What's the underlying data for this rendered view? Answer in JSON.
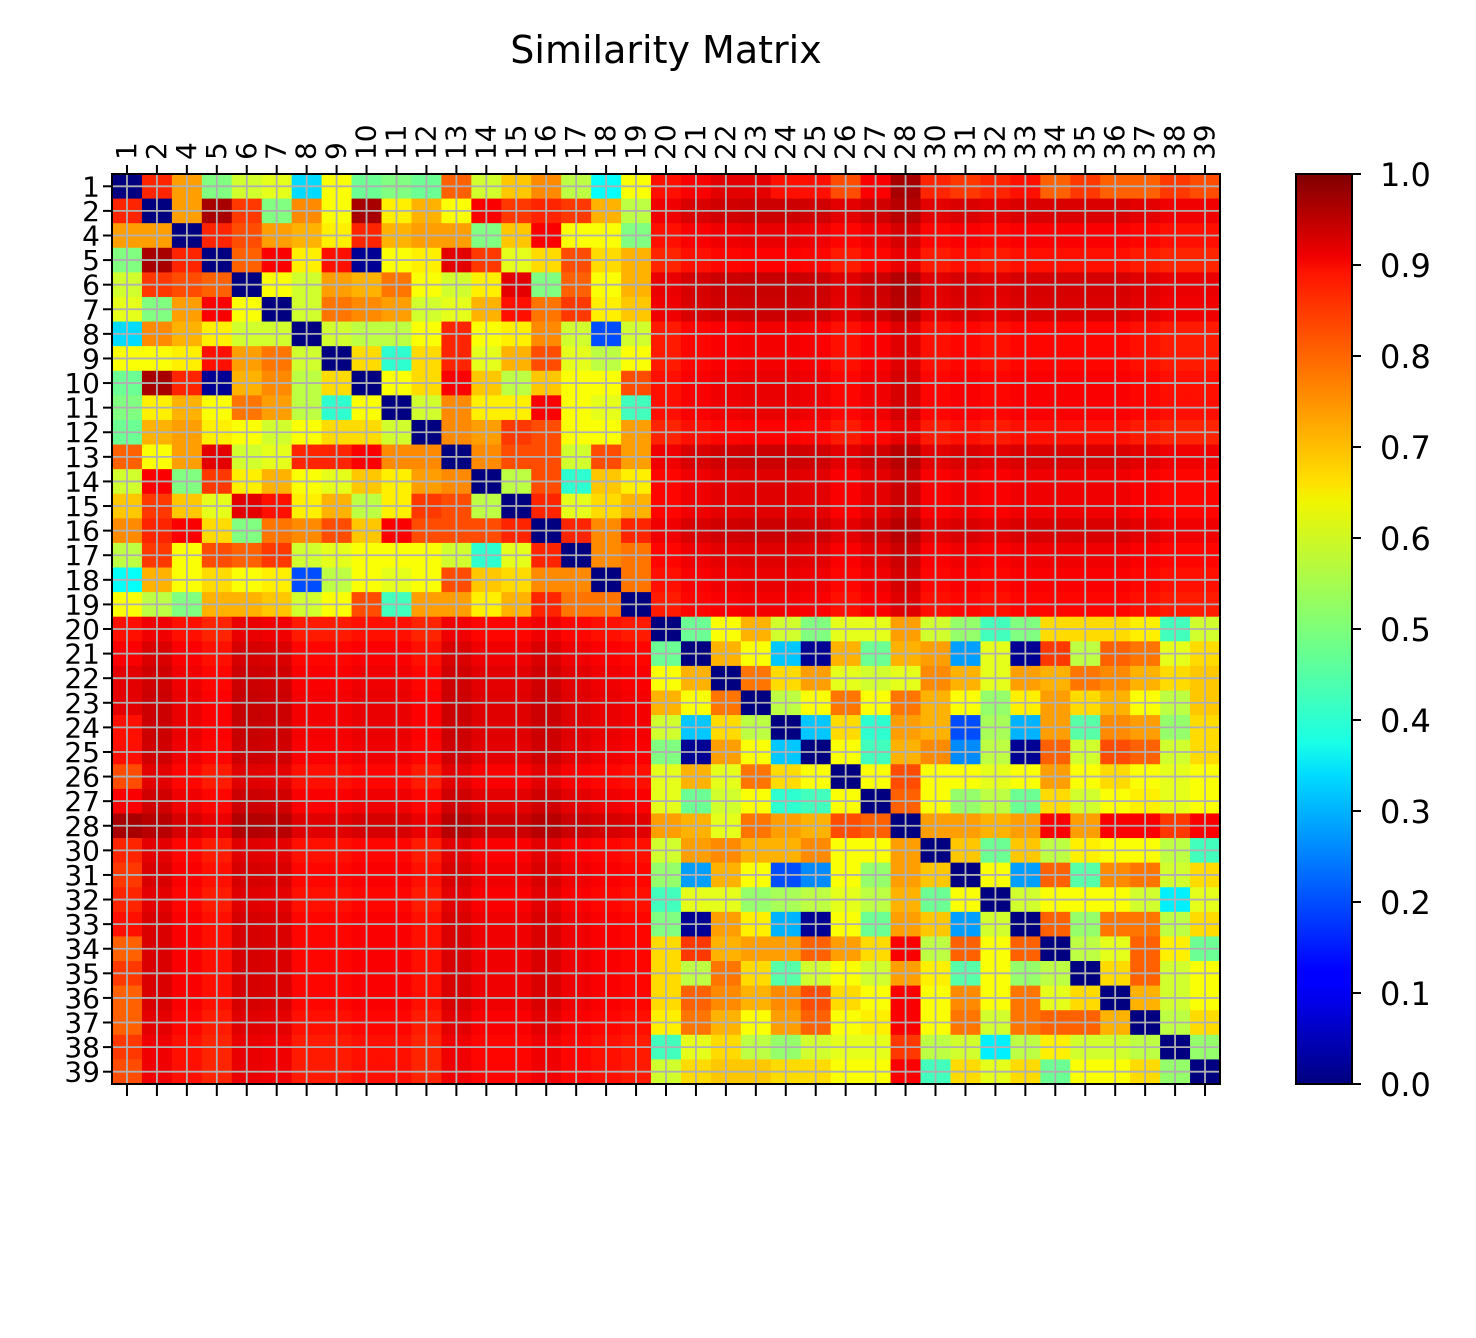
{
  "chart_data": {
    "type": "heatmap",
    "title": "Similarity Matrix",
    "labels": [
      "1",
      "2",
      "4",
      "5",
      "6",
      "7",
      "8",
      "9",
      "10",
      "11",
      "12",
      "13",
      "14",
      "15",
      "16",
      "17",
      "18",
      "19",
      "20",
      "21",
      "22",
      "23",
      "24",
      "25",
      "26",
      "27",
      "28",
      "30",
      "31",
      "32",
      "33",
      "34",
      "35",
      "36",
      "37",
      "38",
      "39"
    ],
    "colormap": "jet",
    "vmin": 0.0,
    "vmax": 1.0,
    "colorbar_ticks": [
      "0.0",
      "0.1",
      "0.2",
      "0.3",
      "0.4",
      "0.5",
      "0.6",
      "0.7",
      "0.8",
      "0.9",
      "1.0"
    ],
    "grid": true,
    "grid_color": "#b0b0b0",
    "x_ticks_position": "top",
    "notes_on_structure": "",
    "pairs": {
      "1-2": 0.84,
      "1-4": 0.72,
      "1-5": 0.5,
      "1-6": 0.58,
      "1-7": 0.6,
      "1-8": 0.34,
      "1-9": 0.62,
      "1-10": 0.48,
      "1-11": 0.5,
      "1-12": 0.48,
      "1-13": 0.78,
      "1-14": 0.58,
      "1-15": 0.68,
      "1-16": 0.74,
      "1-17": 0.56,
      "1-18": 0.38,
      "1-19": 0.62,
      "1-20": 0.86,
      "1-21": 0.88,
      "1-22": 0.9,
      "1-23": 0.9,
      "1-24": 0.86,
      "1-25": 0.86,
      "1-26": 0.8,
      "1-27": 0.88,
      "1-28": 0.96,
      "1-30": 0.84,
      "1-31": 0.82,
      "1-32": 0.84,
      "1-33": 0.86,
      "1-34": 0.78,
      "1-35": 0.82,
      "1-36": 0.78,
      "1-37": 0.78,
      "1-38": 0.82,
      "1-39": 0.8,
      "2-4": 0.72,
      "2-5": 0.96,
      "2-6": 0.82,
      "2-7": 0.5,
      "2-8": 0.74,
      "2-9": 0.62,
      "2-10": 0.96,
      "2-11": 0.64,
      "2-12": 0.7,
      "2-13": 0.62,
      "2-14": 0.88,
      "2-15": 0.82,
      "2-16": 0.84,
      "2-17": 0.82,
      "2-18": 0.7,
      "2-19": 0.56,
      "4-5": 0.84,
      "4-6": 0.8,
      "4-7": 0.72,
      "4-8": 0.7,
      "4-9": 0.64,
      "4-10": 0.84,
      "4-11": 0.7,
      "4-12": 0.72,
      "4-13": 0.72,
      "4-14": 0.5,
      "4-15": 0.68,
      "4-16": 0.88,
      "4-17": 0.62,
      "4-18": 0.62,
      "4-19": 0.5,
      "5-6": 0.78,
      "5-7": 0.88,
      "5-8": 0.64,
      "5-9": 0.86,
      "5-10": 0.02,
      "5-11": 0.62,
      "5-12": 0.64,
      "5-13": 0.9,
      "5-14": 0.82,
      "5-15": 0.6,
      "5-16": 0.66,
      "5-17": 0.8,
      "5-18": 0.66,
      "5-19": 0.7,
      "6-7": 0.62,
      "6-8": 0.58,
      "6-9": 0.72,
      "6-10": 0.7,
      "6-11": 0.76,
      "6-12": 0.62,
      "6-13": 0.58,
      "6-14": 0.64,
      "6-15": 0.9,
      "6-16": 0.5,
      "6-17": 0.78,
      "6-18": 0.62,
      "6-19": 0.7,
      "7-8": 0.58,
      "7-9": 0.76,
      "7-10": 0.74,
      "7-11": 0.72,
      "7-12": 0.58,
      "7-13": 0.6,
      "7-14": 0.7,
      "7-15": 0.86,
      "7-16": 0.76,
      "7-17": 0.82,
      "7-18": 0.64,
      "7-19": 0.68,
      "8-9": 0.58,
      "8-10": 0.56,
      "8-11": 0.56,
      "8-12": 0.62,
      "8-13": 0.84,
      "8-14": 0.62,
      "8-15": 0.64,
      "8-16": 0.74,
      "8-17": 0.58,
      "8-18": 0.2,
      "8-19": 0.58,
      "9-10": 0.66,
      "9-11": 0.42,
      "9-12": 0.66,
      "9-13": 0.84,
      "9-14": 0.6,
      "9-15": 0.7,
      "9-16": 0.8,
      "9-17": 0.6,
      "9-18": 0.56,
      "9-19": 0.62,
      "10-11": 0.62,
      "10-12": 0.66,
      "10-13": 0.88,
      "10-14": 0.68,
      "10-15": 0.56,
      "10-16": 0.68,
      "10-17": 0.62,
      "10-18": 0.62,
      "10-19": 0.8,
      "11-12": 0.58,
      "11-13": 0.74,
      "11-14": 0.64,
      "11-15": 0.64,
      "11-16": 0.88,
      "11-17": 0.62,
      "11-18": 0.6,
      "11-19": 0.44,
      "12-13": 0.74,
      "12-14": 0.72,
      "12-15": 0.82,
      "12-16": 0.8,
      "12-17": 0.62,
      "12-18": 0.62,
      "12-19": 0.72,
      "13-14": 0.74,
      "13-15": 0.8,
      "13-16": 0.8,
      "13-17": 0.58,
      "13-18": 0.8,
      "13-19": 0.72,
      "14-15": 0.56,
      "14-16": 0.8,
      "14-17": 0.42,
      "14-18": 0.68,
      "14-19": 0.64,
      "15-16": 0.84,
      "15-17": 0.6,
      "15-18": 0.66,
      "15-19": 0.7,
      "16-17": 0.84,
      "16-18": 0.74,
      "16-19": 0.84,
      "17-18": 0.74,
      "17-19": 0.76,
      "18-19": 0.76,
      "20-21": 0.48,
      "20-22": 0.62,
      "20-23": 0.7,
      "20-24": 0.58,
      "20-25": 0.5,
      "20-26": 0.6,
      "20-27": 0.6,
      "20-28": 0.72,
      "20-30": 0.58,
      "20-31": 0.52,
      "20-32": 0.44,
      "20-33": 0.5,
      "20-34": 0.66,
      "20-35": 0.66,
      "20-36": 0.66,
      "20-37": 0.64,
      "20-38": 0.44,
      "20-39": 0.58,
      "21-22": 0.7,
      "21-23": 0.62,
      "21-24": 0.32,
      "21-25": 0.02,
      "21-26": 0.7,
      "21-27": 0.48,
      "21-28": 0.7,
      "21-30": 0.72,
      "21-31": 0.28,
      "21-32": 0.6,
      "21-33": 0.02,
      "21-34": 0.82,
      "21-35": 0.56,
      "21-36": 0.78,
      "21-37": 0.76,
      "21-38": 0.6,
      "21-39": 0.66,
      "22-23": 0.76,
      "22-24": 0.66,
      "22-25": 0.72,
      "22-26": 0.6,
      "22-27": 0.58,
      "22-28": 0.6,
      "22-30": 0.74,
      "22-31": 0.7,
      "22-32": 0.6,
      "22-33": 0.72,
      "22-34": 0.7,
      "22-35": 0.76,
      "22-36": 0.74,
      "22-37": 0.7,
      "22-38": 0.66,
      "22-39": 0.68,
      "23-24": 0.56,
      "23-25": 0.62,
      "23-26": 0.76,
      "23-27": 0.62,
      "23-28": 0.76,
      "23-30": 0.7,
      "23-31": 0.62,
      "23-32": 0.52,
      "23-33": 0.64,
      "23-34": 0.72,
      "23-35": 0.66,
      "23-36": 0.7,
      "23-37": 0.62,
      "23-38": 0.56,
      "23-39": 0.68,
      "24-25": 0.32,
      "24-26": 0.66,
      "24-27": 0.42,
      "24-28": 0.72,
      "24-30": 0.7,
      "24-31": 0.2,
      "24-32": 0.54,
      "24-33": 0.3,
      "24-34": 0.72,
      "24-35": 0.46,
      "24-36": 0.74,
      "24-37": 0.72,
      "24-38": 0.52,
      "24-39": 0.66,
      "25-26": 0.62,
      "25-27": 0.44,
      "25-28": 0.7,
      "25-30": 0.74,
      "25-31": 0.26,
      "25-32": 0.56,
      "25-33": 0.02,
      "25-34": 0.78,
      "25-35": 0.58,
      "25-36": 0.8,
      "25-37": 0.78,
      "25-38": 0.58,
      "25-39": 0.66,
      "26-27": 0.62,
      "26-28": 0.8,
      "26-30": 0.62,
      "26-31": 0.62,
      "26-32": 0.6,
      "26-33": 0.62,
      "26-34": 0.72,
      "26-35": 0.62,
      "26-36": 0.66,
      "26-37": 0.62,
      "26-38": 0.6,
      "26-39": 0.62,
      "27-28": 0.78,
      "27-30": 0.62,
      "27-31": 0.52,
      "27-32": 0.56,
      "27-33": 0.48,
      "27-34": 0.66,
      "27-35": 0.58,
      "27-36": 0.62,
      "27-37": 0.64,
      "27-38": 0.6,
      "27-39": 0.62,
      "28-30": 0.72,
      "28-31": 0.72,
      "28-32": 0.7,
      "28-33": 0.72,
      "28-34": 0.88,
      "28-35": 0.72,
      "28-36": 0.88,
      "28-37": 0.88,
      "28-38": 0.82,
      "28-39": 0.88,
      "30-31": 0.68,
      "30-32": 0.48,
      "30-33": 0.68,
      "30-34": 0.56,
      "30-35": 0.64,
      "30-36": 0.62,
      "30-37": 0.62,
      "30-38": 0.56,
      "30-39": 0.44,
      "31-32": 0.62,
      "31-33": 0.28,
      "31-34": 0.78,
      "31-35": 0.46,
      "31-36": 0.74,
      "31-37": 0.76,
      "31-38": 0.58,
      "31-39": 0.66,
      "32-33": 0.58,
      "32-34": 0.62,
      "32-35": 0.62,
      "32-36": 0.62,
      "32-37": 0.58,
      "32-38": 0.36,
      "32-39": 0.6,
      "33-34": 0.78,
      "33-35": 0.52,
      "33-36": 0.76,
      "33-37": 0.76,
      "33-38": 0.56,
      "33-39": 0.66,
      "34-35": 0.56,
      "34-36": 0.6,
      "34-37": 0.78,
      "34-38": 0.64,
      "34-39": 0.48,
      "35-36": 0.66,
      "35-37": 0.78,
      "35-38": 0.58,
      "35-39": 0.62,
      "36-37": 0.7,
      "36-38": 0.58,
      "36-39": 0.62,
      "37-38": 0.56,
      "37-39": 0.66,
      "38-39": 0.52
    },
    "cross_block": {
      "row_means": {
        "1": 0.86,
        "2": 0.92,
        "4": 0.86,
        "5": 0.82,
        "6": 0.93,
        "7": 0.92,
        "8": 0.84,
        "9": 0.84,
        "10": 0.86,
        "11": 0.86,
        "12": 0.82,
        "13": 0.92,
        "14": 0.88,
        "15": 0.88,
        "16": 0.92,
        "17": 0.88,
        "18": 0.86,
        "19": 0.84
      },
      "col_means": {
        "20": 0.86,
        "21": 0.9,
        "22": 0.92,
        "23": 0.93,
        "24": 0.93,
        "25": 0.92,
        "26": 0.88,
        "27": 0.92,
        "28": 0.97,
        "30": 0.88,
        "31": 0.9,
        "32": 0.88,
        "33": 0.9,
        "34": 0.9,
        "35": 0.9,
        "36": 0.9,
        "37": 0.88,
        "38": 0.86,
        "39": 0.86
      }
    }
  }
}
